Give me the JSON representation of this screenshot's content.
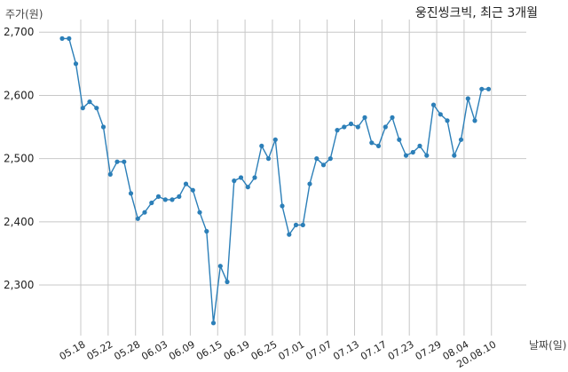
{
  "chart_data": {
    "type": "line",
    "title": "웅진씽크빅, 최근 3개월",
    "ylabel": "주가(원)",
    "xlabel": "날짜(일)",
    "ylim": [
      2220,
      2720
    ],
    "yticks": [
      2300,
      2400,
      2500,
      2600,
      2700
    ],
    "ytick_labels": [
      "2,300",
      "2,400",
      "2,500",
      "2,600",
      "2,700"
    ],
    "xticks": [
      "05.18",
      "05.22",
      "05.28",
      "06.03",
      "06.09",
      "06.15",
      "06.19",
      "06.25",
      "07.01",
      "07.07",
      "07.13",
      "07.17",
      "07.23",
      "07.29",
      "08.04",
      "20.08.10"
    ],
    "grid": true,
    "color": "#2c7fb8",
    "series": [
      {
        "values": [
          2690,
          2690,
          2650,
          2580,
          2590,
          2580,
          2550,
          2475,
          2495,
          2495,
          2445,
          2405,
          2415,
          2430,
          2440,
          2435,
          2435,
          2440,
          2460,
          2450,
          2415,
          2385,
          2240,
          2330,
          2305,
          2465,
          2470,
          2455,
          2470,
          2520,
          2500,
          2530,
          2425,
          2380,
          2395,
          2395,
          2460,
          2500,
          2490,
          2500,
          2545,
          2550,
          2555,
          2550,
          2565,
          2525,
          2520,
          2550,
          2565,
          2530,
          2505,
          2510,
          2520,
          2505,
          2585,
          2570,
          2560,
          2505,
          2530,
          2595,
          2560,
          2610,
          2610
        ]
      }
    ]
  }
}
